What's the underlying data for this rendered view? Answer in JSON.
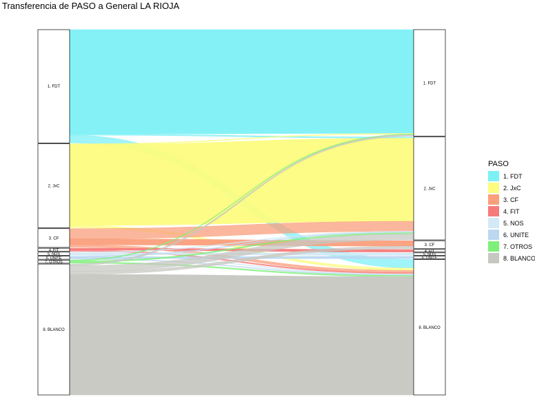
{
  "title": "Transferencia de PASO a General LA RIOJA",
  "chart_data": {
    "type": "alluvial",
    "title": "Transferencia de PASO a General LA RIOJA",
    "axes": [
      {
        "name": "PASO",
        "categories": [
          "1. FDT",
          "2. JxC",
          "3. CF",
          "4. FIT",
          "5. NOS",
          "6. UNITE",
          "7. OTROS",
          "8. BLANCO"
        ],
        "shares": [
          0.29,
          0.215,
          0.048,
          0.008,
          0.008,
          0.008,
          0.008,
          0.335
        ]
      },
      {
        "name": "General",
        "categories": [
          "1. FDT",
          "2. JxC",
          "3. CF",
          "4. FIT",
          "5. NOS",
          "6. UNITE",
          "8. BLANCO"
        ],
        "shares": [
          0.295,
          0.285,
          0.022,
          0.007,
          0.007,
          0.007,
          0.375
        ]
      }
    ],
    "flows": [
      {
        "from": "1. FDT",
        "to": "1. FDT",
        "value": 0.295
      },
      {
        "from": "1. FDT",
        "to": "8. BLANCO",
        "value": 0.022
      },
      {
        "from": "1. FDT",
        "to": "2. JxC",
        "value": 0.003
      },
      {
        "from": "2. JxC",
        "to": "2. JxC",
        "value": 0.21
      },
      {
        "from": "2. JxC",
        "to": "8. BLANCO",
        "value": 0.006
      },
      {
        "from": "2. JxC",
        "to": "1. FDT",
        "value": 0.002
      },
      {
        "from": "3. CF",
        "to": "2. JxC",
        "value": 0.025
      },
      {
        "from": "3. CF",
        "to": "3. CF",
        "value": 0.015
      },
      {
        "from": "3. CF",
        "to": "8. BLANCO",
        "value": 0.006
      },
      {
        "from": "4. FIT",
        "to": "4. FIT",
        "value": 0.005
      },
      {
        "from": "4. FIT",
        "to": "8. BLANCO",
        "value": 0.003
      },
      {
        "from": "5. NOS",
        "to": "5. NOS",
        "value": 0.004
      },
      {
        "from": "5. NOS",
        "to": "2. JxC",
        "value": 0.002
      },
      {
        "from": "5. NOS",
        "to": "8. BLANCO",
        "value": 0.002
      },
      {
        "from": "6. UNITE",
        "to": "6. UNITE",
        "value": 0.004
      },
      {
        "from": "6. UNITE",
        "to": "2. JxC",
        "value": 0.002
      },
      {
        "from": "6. UNITE",
        "to": "8. BLANCO",
        "value": 0.002
      },
      {
        "from": "7. OTROS",
        "to": "2. JxC",
        "value": 0.003
      },
      {
        "from": "7. OTROS",
        "to": "8. BLANCO",
        "value": 0.003
      },
      {
        "from": "7. OTROS",
        "to": "1. FDT",
        "value": 0.002
      },
      {
        "from": "8. BLANCO",
        "to": "8. BLANCO",
        "value": 0.305
      },
      {
        "from": "8. BLANCO",
        "to": "2. JxC",
        "value": 0.015
      },
      {
        "from": "8. BLANCO",
        "to": "3. CF",
        "value": 0.007
      },
      {
        "from": "8. BLANCO",
        "to": "1. FDT",
        "value": 0.004
      }
    ],
    "legend": {
      "title": "PASO",
      "position": "right",
      "entries": [
        {
          "label": "1. FDT",
          "color": "#7df0f6"
        },
        {
          "label": "2. JxC",
          "color": "#fcfc7f"
        },
        {
          "label": "3. CF",
          "color": "#fa9f7c"
        },
        {
          "label": "4. FIT",
          "color": "#f77a7a"
        },
        {
          "label": "5. NOS",
          "color": "#d3e9f5"
        },
        {
          "label": "6. UNITE",
          "color": "#bcd8f0"
        },
        {
          "label": "7. OTROS",
          "color": "#7ef07a"
        },
        {
          "label": "8. BLANCO",
          "color": "#c7c7c2"
        }
      ]
    }
  }
}
